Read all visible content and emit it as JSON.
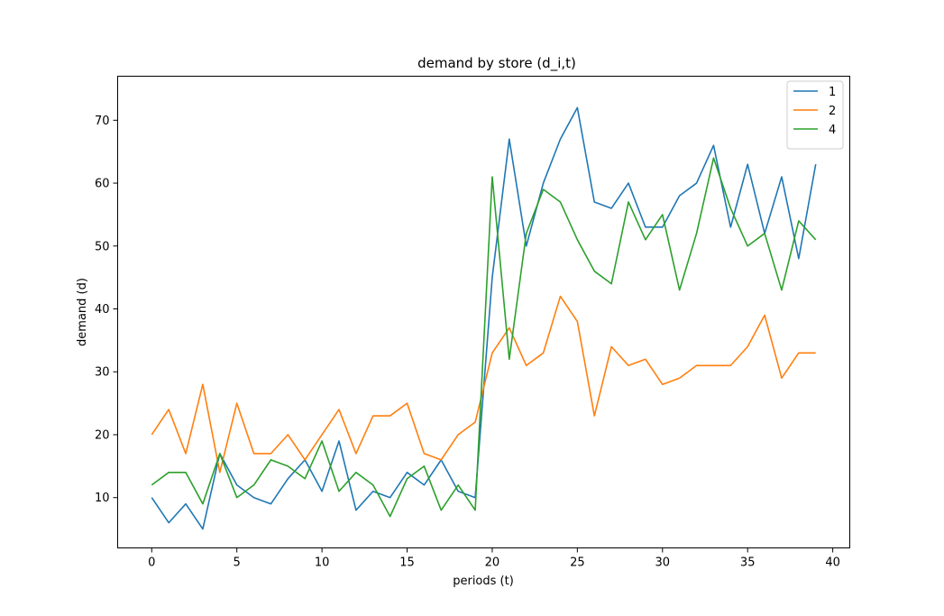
{
  "chart_data": {
    "type": "line",
    "title": "demand by store (d_i,t)",
    "xlabel": "periods (t)",
    "ylabel": "demand (d)",
    "xlim": [
      -2,
      41
    ],
    "ylim": [
      2,
      77
    ],
    "xticks": [
      0,
      5,
      10,
      15,
      20,
      25,
      30,
      35,
      40
    ],
    "yticks": [
      10,
      20,
      30,
      40,
      50,
      60,
      70
    ],
    "legend_position": "top-right",
    "grid": false,
    "x": [
      0,
      1,
      2,
      3,
      4,
      5,
      6,
      7,
      8,
      9,
      10,
      11,
      12,
      13,
      14,
      15,
      16,
      17,
      18,
      19,
      20,
      21,
      22,
      23,
      24,
      25,
      26,
      27,
      28,
      29,
      30,
      31,
      32,
      33,
      34,
      35,
      36,
      37,
      38,
      39
    ],
    "series": [
      {
        "name": "1",
        "color": "#1f77b4",
        "values": [
          10,
          6,
          9,
          5,
          17,
          12,
          10,
          9,
          13,
          16,
          11,
          19,
          8,
          11,
          10,
          14,
          12,
          16,
          11,
          10,
          45,
          67,
          50,
          60,
          67,
          72,
          57,
          56,
          60,
          53,
          53,
          58,
          60,
          66,
          53,
          63,
          52,
          61,
          48,
          63
        ]
      },
      {
        "name": "2",
        "color": "#ff7f0e",
        "values": [
          20,
          24,
          17,
          28,
          14,
          25,
          17,
          17,
          20,
          16,
          20,
          24,
          17,
          23,
          23,
          25,
          17,
          16,
          20,
          22,
          33,
          37,
          31,
          33,
          42,
          38,
          23,
          34,
          31,
          32,
          28,
          29,
          31,
          31,
          31,
          34,
          39,
          29,
          33,
          33
        ]
      },
      {
        "name": "4",
        "color": "#2ca02c",
        "values": [
          12,
          14,
          14,
          9,
          17,
          10,
          12,
          16,
          15,
          13,
          19,
          11,
          14,
          12,
          7,
          13,
          15,
          8,
          12,
          8,
          61,
          32,
          52,
          59,
          57,
          51,
          46,
          44,
          57,
          51,
          55,
          43,
          52,
          64,
          56,
          50,
          52,
          43,
          54,
          51
        ]
      }
    ]
  }
}
